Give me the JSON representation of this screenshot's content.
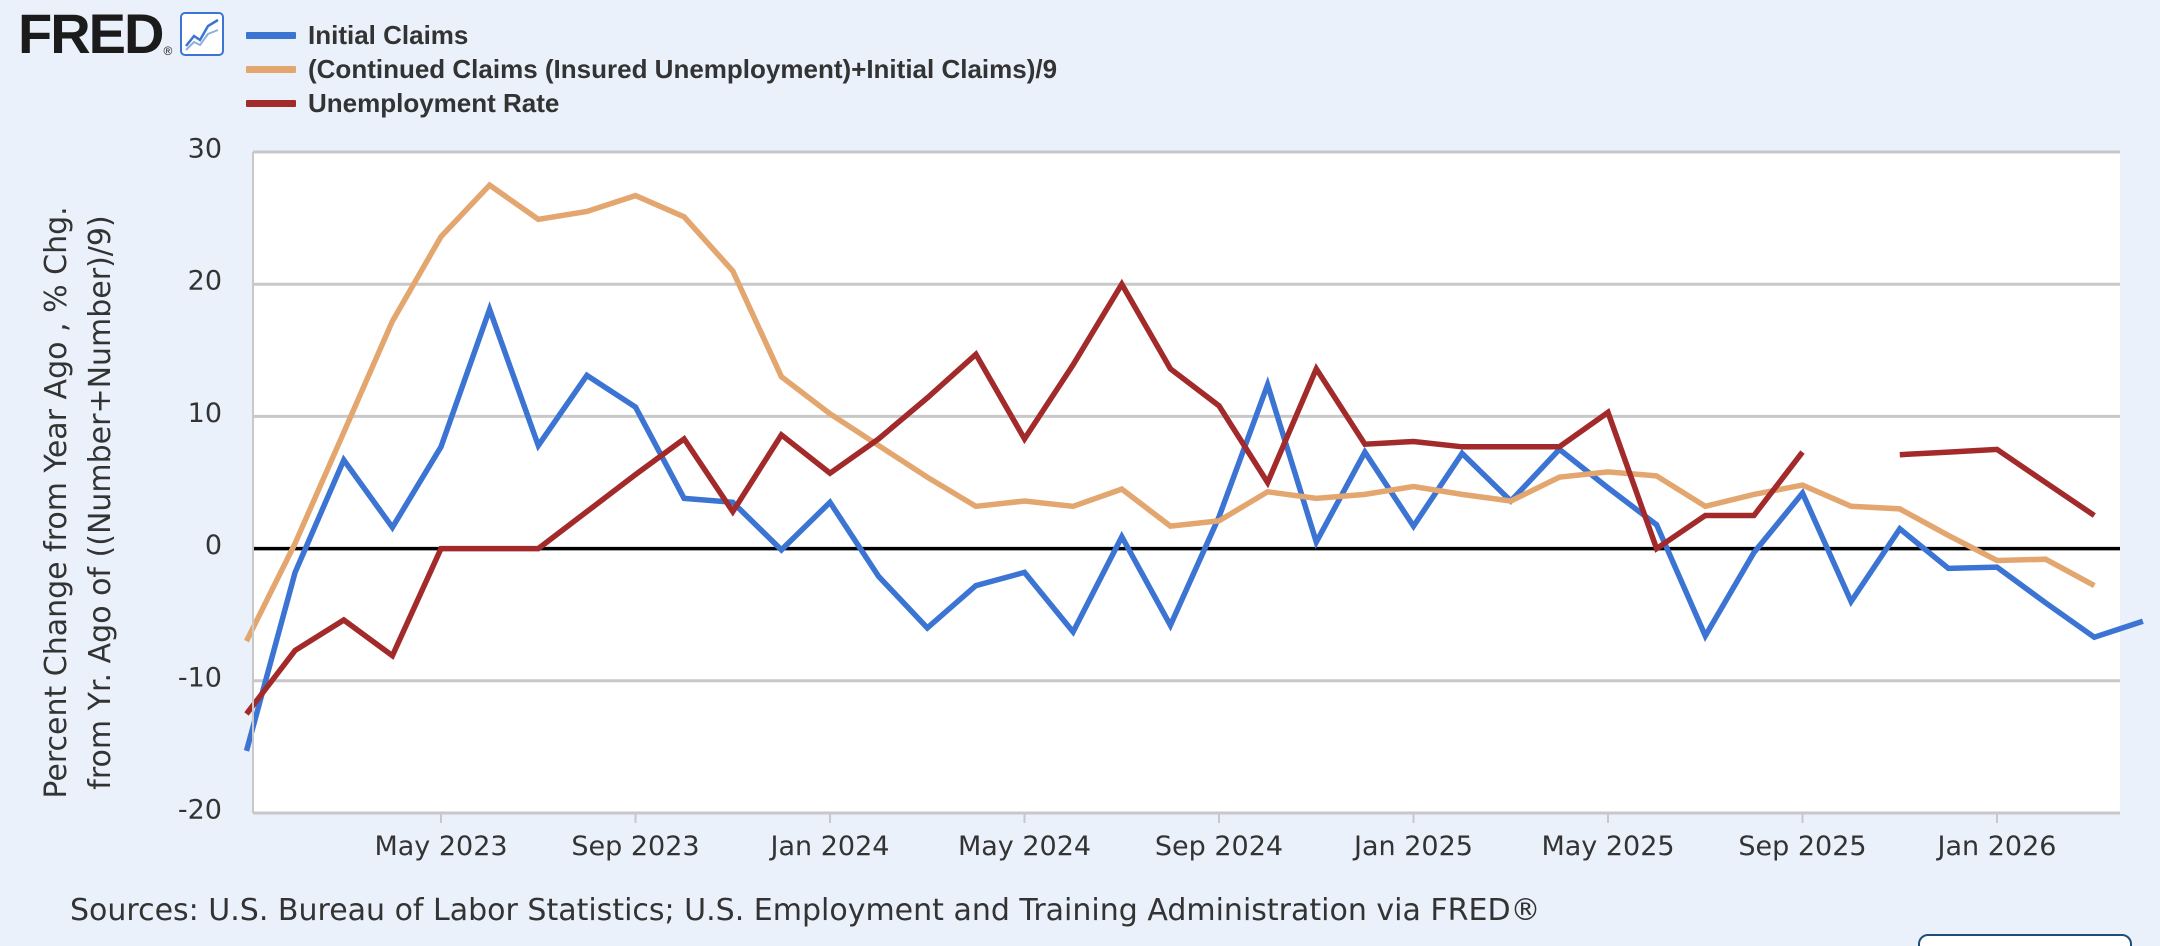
{
  "logo": {
    "text": "FRED",
    "icon": "line-chart-icon"
  },
  "legend": [
    {
      "label": "Initial Claims",
      "color": "#3b74d3"
    },
    {
      "label": "(Continued Claims (Insured Unemployment)+Initial Claims)/9",
      "color": "#e3a66f"
    },
    {
      "label": "Unemployment Rate",
      "color": "#a32a2a"
    }
  ],
  "footer": {
    "sources": "Sources: U.S. Bureau of Labor Statistics; U.S. Employment and Training Administration via FRED®"
  },
  "chart_data": {
    "type": "line",
    "ylabel": "Percent Change from Year Ago , % Chg. from Yr. Ago of ((Number+Number)/9)",
    "ylabel_lines": [
      "Percent Change from Year Ago , % Chg.",
      "from Yr. Ago of ((Number+Number)/9)"
    ],
    "ylim": [
      -20,
      30
    ],
    "yticks": [
      30,
      20,
      10,
      0,
      -10,
      -20
    ],
    "zero_line": true,
    "grid": true,
    "x": [
      "Jan 2023",
      "Feb 2023",
      "Mar 2023",
      "Apr 2023",
      "May 2023",
      "Jun 2023",
      "Jul 2023",
      "Aug 2023",
      "Sep 2023",
      "Oct 2023",
      "Nov 2023",
      "Dec 2023",
      "Jan 2024",
      "Feb 2024",
      "Mar 2024",
      "Apr 2024",
      "May 2024",
      "Jun 2024",
      "Jul 2024",
      "Aug 2024",
      "Sep 2024",
      "Oct 2024",
      "Nov 2024",
      "Dec 2024",
      "Jan 2025",
      "Feb 2025",
      "Mar 2025",
      "Apr 2025",
      "May 2025",
      "Jun 2025",
      "Jul 2025",
      "Aug 2025",
      "Sep 2025",
      "Oct 2025",
      "Nov 2025",
      "Dec 2025",
      "Jan 2026",
      "Feb 2026",
      "Mar 2026",
      "Apr 2026"
    ],
    "xtick_labels": [
      {
        "label": "May 2023",
        "index": 4
      },
      {
        "label": "Sep 2023",
        "index": 8
      },
      {
        "label": "Jan 2024",
        "index": 12
      },
      {
        "label": "May 2024",
        "index": 16
      },
      {
        "label": "Sep 2024",
        "index": 20
      },
      {
        "label": "Jan 2025",
        "index": 24
      },
      {
        "label": "May 2025",
        "index": 28
      },
      {
        "label": "Sep 2025",
        "index": 32
      },
      {
        "label": "Jan 2026",
        "index": 36
      }
    ],
    "series": [
      {
        "name": "Initial Claims",
        "color": "#3b74d3",
        "values": [
          -15.3,
          -1.8,
          6.7,
          1.6,
          7.7,
          18.1,
          7.8,
          13.1,
          10.7,
          3.8,
          3.5,
          -0.1,
          3.5,
          -2.1,
          -6.0,
          -2.8,
          -1.8,
          -6.3,
          0.9,
          -5.8,
          2.4,
          12.4,
          0.5,
          7.3,
          1.7,
          7.2,
          3.6,
          7.5,
          4.6,
          1.8,
          -6.6,
          -0.3,
          4.2,
          -4.0,
          1.5,
          -1.5,
          -1.4,
          -4.1,
          -6.7,
          -5.5
        ]
      },
      {
        "name": "(Continued Claims (Insured Unemployment)+Initial Claims)/9",
        "color": "#e3a66f",
        "values": [
          -7.0,
          0.4,
          8.8,
          17.2,
          23.6,
          27.5,
          24.9,
          25.5,
          26.7,
          25.1,
          21.0,
          13.0,
          10.2,
          7.8,
          5.4,
          3.2,
          3.6,
          3.2,
          4.5,
          1.7,
          2.1,
          4.3,
          3.8,
          4.1,
          4.7,
          4.1,
          3.6,
          5.4,
          5.8,
          5.5,
          3.2,
          4.1,
          4.8,
          3.2,
          3.0,
          1.0,
          -0.9,
          -0.8,
          -2.8,
          null
        ]
      },
      {
        "name": "Unemployment Rate",
        "color": "#a32a2a",
        "values": [
          -12.5,
          -7.7,
          -5.4,
          -8.1,
          0.0,
          0.0,
          0.0,
          2.8,
          5.6,
          8.3,
          2.8,
          8.6,
          5.7,
          8.3,
          11.4,
          14.7,
          8.3,
          13.9,
          20.0,
          13.6,
          10.8,
          5.0,
          13.6,
          7.9,
          8.1,
          7.7,
          7.7,
          7.7,
          10.3,
          0.0,
          2.5,
          2.5,
          7.3,
          null,
          7.1,
          7.3,
          7.5,
          5.0,
          2.5,
          null
        ]
      }
    ]
  }
}
